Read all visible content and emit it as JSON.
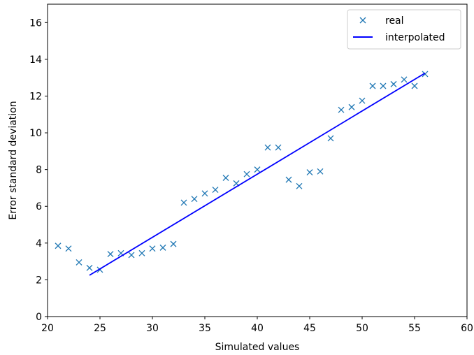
{
  "chart_data": {
    "type": "scatter",
    "xlabel": "Simulated values",
    "ylabel": "Error standard deviation",
    "xlim": [
      20,
      60
    ],
    "ylim": [
      0,
      17
    ],
    "xticks": [
      20,
      25,
      30,
      35,
      40,
      45,
      50,
      55,
      60
    ],
    "yticks": [
      0,
      2,
      4,
      6,
      8,
      10,
      12,
      14,
      16
    ],
    "grid": false,
    "legend_position": "top-right",
    "series": [
      {
        "name": "real",
        "type": "scatter",
        "marker": "x",
        "color": "#1f77b4",
        "x": [
          21,
          22,
          23,
          24,
          25,
          26,
          27,
          28,
          29,
          30,
          31,
          32,
          33,
          34,
          35,
          36,
          37,
          38,
          39,
          40,
          41,
          42,
          43,
          44,
          45,
          46,
          47,
          48,
          49,
          50,
          51,
          52,
          53,
          54,
          55,
          56
        ],
        "y": [
          3.85,
          3.7,
          2.95,
          2.65,
          2.55,
          3.4,
          3.45,
          3.35,
          3.45,
          3.7,
          3.75,
          3.95,
          6.2,
          6.4,
          6.7,
          6.9,
          7.55,
          7.25,
          7.75,
          8.0,
          9.2,
          9.2,
          7.45,
          7.1,
          7.85,
          7.9,
          9.7,
          11.25,
          11.4,
          11.75,
          12.55,
          12.55,
          12.65,
          12.9,
          12.55,
          13.2
        ]
      },
      {
        "name": "interpolated",
        "type": "line",
        "color": "#0000ff",
        "x": [
          24,
          56
        ],
        "y": [
          2.25,
          13.25
        ]
      }
    ]
  }
}
